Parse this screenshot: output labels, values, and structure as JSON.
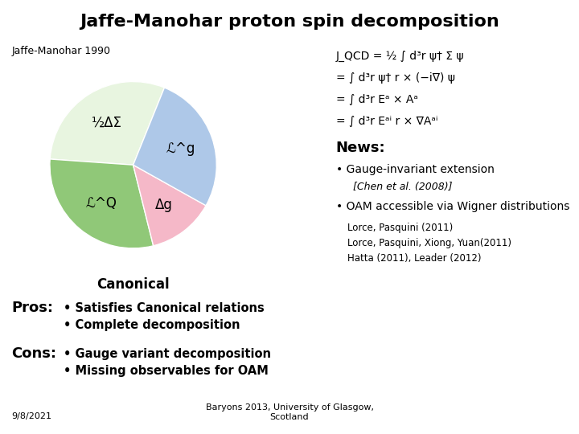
{
  "chart_data": {
    "type": "pie",
    "title": "Jaffe-Manohar proton spin decomposition",
    "subtitle": "Jaffe-Manohar 1990",
    "categories": [
      "½ΔΣ",
      "ℒ^Q",
      "Δg",
      "ℒ^g"
    ],
    "values": [
      0.3,
      0.3,
      0.13,
      0.27
    ],
    "colors": [
      "#e8f5e0",
      "#90c878",
      "#f5b8c8",
      "#aec8e8"
    ],
    "annotations": [
      "Canonical",
      "J_QCD = ½ ∫ d³r ψ† Σ ψ",
      "= ∫ d³r ψ† r × (−i∇) ψ",
      "= ∫ d³r Eᵃ × Aᵃ",
      "= ∫ d³r Eᵃⁱ r × ∇Aᵃⁱ",
      "News:",
      "• Gauge-invariant extension",
      "[Chen et al. (2008)]",
      "• OAM accessible via Wigner distributions",
      "Lorce, Pasquini (2011)",
      "Lorce, Pasquini, Xiong, Yuan(2011)",
      "Hatta (2011), Leader (2012)",
      "Pros:",
      "• Satisfies Canonical relations",
      "• Complete decomposition",
      "Cons:",
      "• Gauge variant decomposition",
      "• Missing observables for OAM",
      "9/8/2021",
      "Baryons 2013, University of Glasgow,\nScotland"
    ]
  }
}
